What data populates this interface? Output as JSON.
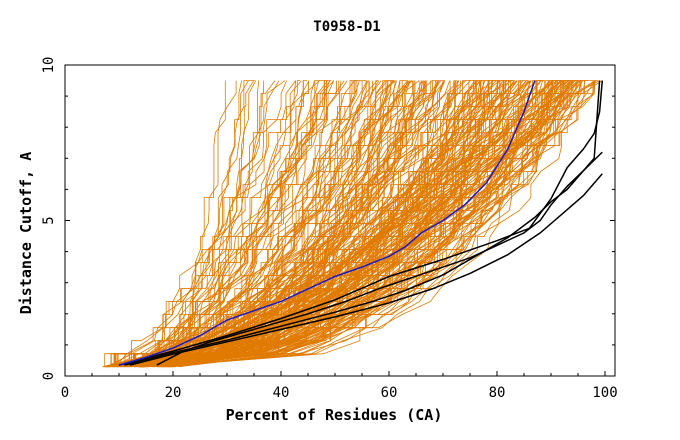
{
  "chart_data": {
    "type": "line",
    "title": "T0958-D1",
    "xlabel": "Percent of Residues (CA)",
    "ylabel": "Distance Cutoff, A",
    "xlim": [
      0,
      100
    ],
    "ylim": [
      0,
      10
    ],
    "x_ticks": [
      "0",
      "20",
      "40",
      "60",
      "80",
      "100"
    ],
    "y_ticks": [
      "0",
      "5",
      "10"
    ],
    "grid": false,
    "legend": "none",
    "colors": {
      "background_models": "#e07a00",
      "highlight": "#1a1acc",
      "reference": "#000000",
      "axes": "#000000"
    },
    "background_models": {
      "count": 260,
      "color": "#e07a00",
      "x_range_at_cutoff_0_3": [
        7,
        20
      ],
      "x_range_at_cutoff_9_5": [
        26,
        99
      ],
      "y_max": 9.5
    },
    "highlight_series": {
      "name": "",
      "color": "#1a1acc",
      "x": [
        10,
        15,
        20,
        25,
        30,
        35,
        40,
        45,
        50,
        55,
        60,
        63,
        66,
        70,
        74,
        78,
        82,
        85,
        87
      ],
      "y": [
        0.35,
        0.6,
        0.9,
        1.3,
        1.8,
        2.1,
        2.4,
        2.8,
        3.2,
        3.5,
        3.85,
        4.15,
        4.6,
        5.0,
        5.5,
        6.2,
        7.3,
        8.5,
        9.5
      ]
    },
    "reference_series": [
      {
        "name": "",
        "x": [
          10,
          20,
          30,
          40,
          50,
          60,
          70,
          80,
          86,
          90,
          93,
          96,
          98,
          99,
          99.5
        ],
        "y": [
          0.35,
          0.8,
          1.3,
          1.85,
          2.45,
          3.2,
          3.75,
          4.35,
          4.75,
          5.7,
          6.7,
          7.3,
          7.8,
          8.5,
          9.5
        ]
      },
      {
        "name": "",
        "x": [
          11,
          20,
          30,
          40,
          50,
          57,
          63,
          70,
          76,
          82,
          87,
          90,
          93,
          96,
          98,
          99
        ],
        "y": [
          0.35,
          0.75,
          1.15,
          1.6,
          2.05,
          2.4,
          2.75,
          3.25,
          3.85,
          4.45,
          5.1,
          5.6,
          6.0,
          6.6,
          7.0,
          9.5
        ]
      },
      {
        "name": "",
        "x": [
          12,
          20,
          30,
          40,
          50,
          60,
          68,
          75,
          82,
          88,
          92,
          96,
          99.5
        ],
        "y": [
          0.35,
          0.7,
          1.1,
          1.5,
          1.9,
          2.35,
          2.8,
          3.3,
          3.9,
          4.6,
          5.2,
          5.8,
          6.5
        ]
      },
      {
        "name": "",
        "x": [
          17,
          22,
          27,
          32,
          38,
          45,
          52,
          58,
          64,
          70,
          75,
          80,
          85,
          88,
          90,
          93,
          96,
          99.5
        ],
        "y": [
          0.35,
          0.8,
          1.1,
          1.35,
          1.65,
          2.0,
          2.4,
          2.8,
          3.15,
          3.5,
          3.8,
          4.2,
          4.6,
          5.0,
          5.5,
          6.1,
          6.6,
          7.2
        ]
      }
    ]
  }
}
